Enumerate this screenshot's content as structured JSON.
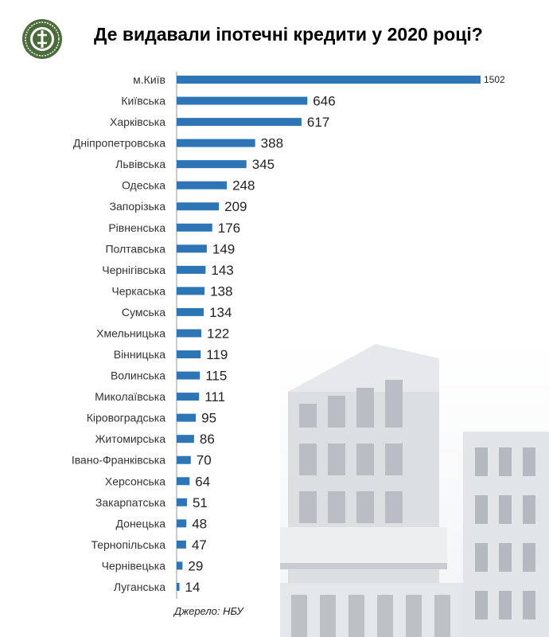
{
  "header": {
    "title": "Де видавали іпотечні кредити у 2020 році?"
  },
  "footer": {
    "source": "Джерело: НБУ"
  },
  "colors": {
    "bar": "#2e75b6",
    "axis": "#999999",
    "logo": "#4a6b3a"
  },
  "chart_data": {
    "type": "bar",
    "orientation": "horizontal",
    "title": "Де видавали іпотечні кредити у 2020 році?",
    "categories": [
      "м.Київ",
      "Київська",
      "Харківська",
      "Дніпропетровська",
      "Львівська",
      "Одеська",
      "Запорізька",
      "Рівненська",
      "Полтавська",
      "Чернігівська",
      "Черкаська",
      "Сумська",
      "Хмельницька",
      "Вінницька",
      "Волинська",
      "Миколаївська",
      "Кіровоградська",
      "Житомирська",
      "Івано-Франківська",
      "Херсонська",
      "Закарпатська",
      "Донецька",
      "Тернопільська",
      "Чернівецька",
      "Луганська"
    ],
    "values": [
      1502,
      646,
      617,
      388,
      345,
      248,
      209,
      176,
      149,
      143,
      138,
      134,
      122,
      119,
      115,
      111,
      95,
      86,
      70,
      64,
      51,
      48,
      47,
      29,
      14
    ],
    "xlim": [
      0,
      1502
    ],
    "grid": false,
    "legend": "none"
  }
}
